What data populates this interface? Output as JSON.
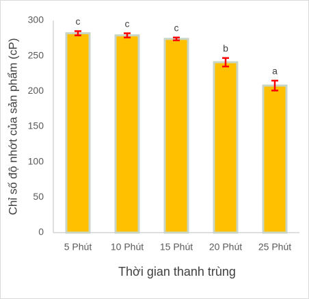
{
  "chart_data": {
    "type": "bar",
    "x_label": "Thời gian thanh trùng",
    "y_label": "Chỉ số độ nhớt của sản phẩm (cP)",
    "categories": [
      "5 Phút",
      "10 Phút",
      "15 Phút",
      "20 Phút",
      "25 Phút"
    ],
    "values": [
      282,
      279,
      274,
      241,
      208
    ],
    "errors": [
      3,
      3,
      2,
      6,
      7
    ],
    "annotations": [
      "c",
      "c",
      "c",
      "b",
      "a"
    ],
    "color": "#ffc000",
    "edge_color": "#c9d6c6",
    "error_color": "#ff0000",
    "ylim": [
      0,
      300
    ],
    "yticks": [
      0,
      50,
      100,
      150,
      200,
      250,
      300
    ],
    "grid": false
  }
}
